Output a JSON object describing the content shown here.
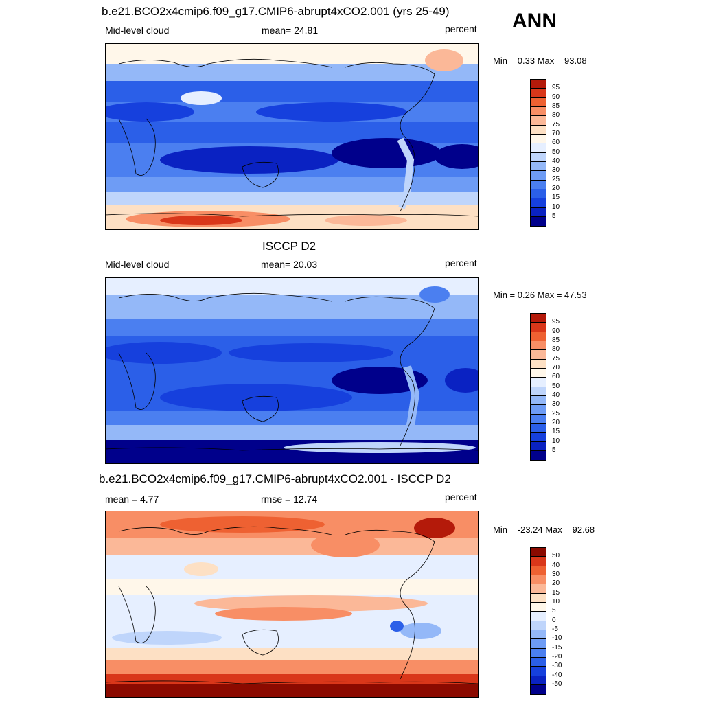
{
  "header": {
    "season": "ANN"
  },
  "panels": [
    {
      "id": "model",
      "title": "b.e21.BCO2x4cmip6.f09_g17.CMIP6-abrupt4xCO2.001 (yrs 25-49)",
      "left_label": "Mid-level cloud",
      "center_label": "mean=  24.81",
      "right_label": "percent",
      "minmax": "Min =   0.33 Max =  93.08"
    },
    {
      "id": "obs",
      "title": "ISCCP D2",
      "left_label": "Mid-level cloud",
      "center_label": "mean=  20.03",
      "right_label": "percent",
      "minmax": "Min =   0.26 Max =  47.53"
    },
    {
      "id": "diff",
      "title": "b.e21.BCO2x4cmip6.f09_g17.CMIP6-abrupt4xCO2.001 - ISCCP D2",
      "left_label": "mean =   4.77",
      "center_label": "rmse =  12.74",
      "right_label": "percent",
      "minmax": "Min = -23.24 Max =  92.68"
    }
  ],
  "chart_data": [
    {
      "type": "heatmap",
      "title": "b.e21.BCO2x4cmip6.f09_g17.CMIP6-abrupt4xCO2.001 (yrs 25-49)",
      "variable": "Mid-level cloud",
      "units": "percent",
      "mean": 24.81,
      "min": 0.33,
      "max": 93.08,
      "levels": [
        5,
        10,
        15,
        20,
        25,
        30,
        40,
        50,
        60,
        70,
        75,
        80,
        85,
        90,
        95
      ],
      "colors": [
        "#00008b",
        "#0a22c2",
        "#1640dd",
        "#2b5fe8",
        "#4b7ff0",
        "#6e9cf5",
        "#94b8f8",
        "#bfd5fb",
        "#e6efff",
        "#fff7ea",
        "#fde0c4",
        "#fbb898",
        "#f88e65",
        "#ee6132",
        "#d9371a",
        "#b41a0a"
      ]
    },
    {
      "type": "heatmap",
      "title": "ISCCP D2",
      "variable": "Mid-level cloud",
      "units": "percent",
      "mean": 20.03,
      "min": 0.26,
      "max": 47.53,
      "levels": [
        5,
        10,
        15,
        20,
        25,
        30,
        40,
        50,
        60,
        70,
        75,
        80,
        85,
        90,
        95
      ],
      "colors": [
        "#00008b",
        "#0a22c2",
        "#1640dd",
        "#2b5fe8",
        "#4b7ff0",
        "#6e9cf5",
        "#94b8f8",
        "#bfd5fb",
        "#e6efff",
        "#fff7ea",
        "#fde0c4",
        "#fbb898",
        "#f88e65",
        "#ee6132",
        "#d9371a",
        "#b41a0a"
      ]
    },
    {
      "type": "heatmap",
      "title": "b.e21.BCO2x4cmip6.f09_g17.CMIP6-abrupt4xCO2.001 - ISCCP D2",
      "units": "percent",
      "mean": 4.77,
      "rmse": 12.74,
      "min": -23.24,
      "max": 92.68,
      "levels": [
        -50,
        -40,
        -30,
        -20,
        -15,
        -10,
        -5,
        0,
        5,
        10,
        15,
        20,
        30,
        40,
        50
      ],
      "colors": [
        "#00008b",
        "#0a22c2",
        "#1640dd",
        "#2b5fe8",
        "#4b7ff0",
        "#6e9cf5",
        "#94b8f8",
        "#bfd5fb",
        "#e6efff",
        "#fff7ea",
        "#fde0c4",
        "#fbb898",
        "#f88e65",
        "#ee6132",
        "#d9371a",
        "#8b0a00"
      ]
    }
  ]
}
